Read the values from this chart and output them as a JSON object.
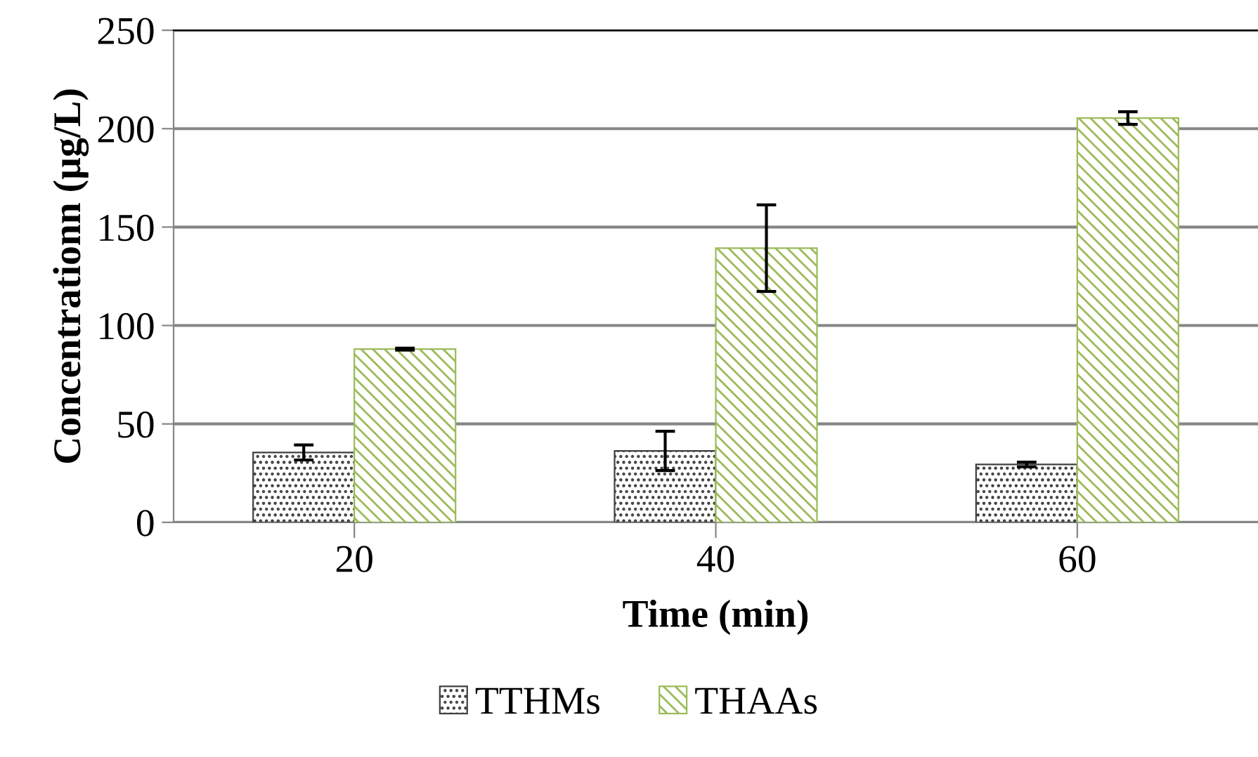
{
  "chart_data": {
    "type": "bar",
    "xlabel": "Time (min)",
    "ylabel": "Concentrationn (µg/L)",
    "categories": [
      "20",
      "40",
      "60"
    ],
    "series": [
      {
        "name": "TTHMs",
        "color": "#404040",
        "values": [
          35.5,
          36.3,
          29.4
        ],
        "errors": [
          3.8,
          10,
          1.2
        ]
      },
      {
        "name": "THAAs",
        "color": "#9bbb59",
        "values": [
          88,
          139.3,
          205.4
        ],
        "errors": [
          0.5,
          22,
          3.2
        ]
      }
    ],
    "ylim": [
      0,
      250
    ],
    "yticks": [
      0,
      50,
      100,
      150,
      200,
      250
    ],
    "grid": "y",
    "legend": "bottom"
  }
}
